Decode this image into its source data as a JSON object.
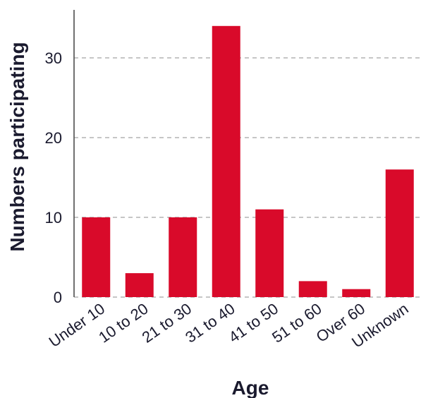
{
  "chart_data": {
    "type": "bar",
    "categories": [
      "Under 10",
      "10 to 20",
      "21 to 30",
      "31 to 40",
      "41 to 50",
      "51 to 60",
      "Over 60",
      "Unknown"
    ],
    "values": [
      10,
      3,
      10,
      34,
      11,
      2,
      1,
      16
    ],
    "xlabel": "Age",
    "ylabel": "Numbers participating",
    "ylim": [
      0,
      35
    ],
    "yticks": [
      0,
      10,
      20,
      30
    ],
    "grid": true,
    "bar_color": "#d90a2a"
  }
}
